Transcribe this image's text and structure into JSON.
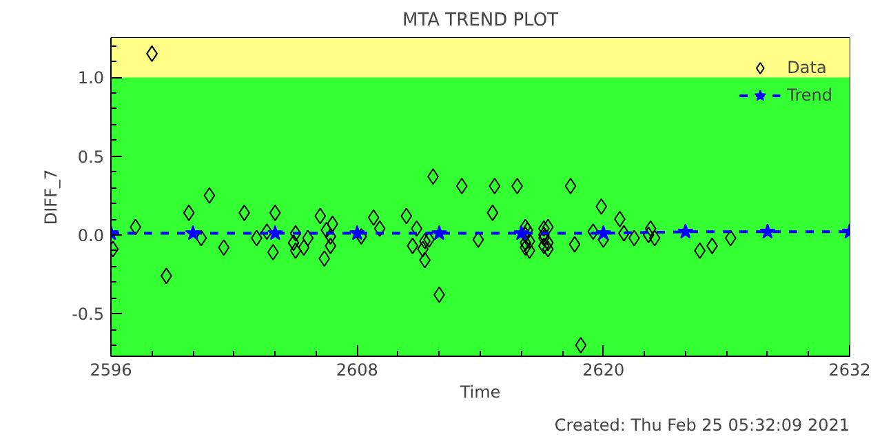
{
  "chart_data": {
    "type": "scatter",
    "title": "MTA TREND PLOT",
    "xlabel": "Time",
    "ylabel": "DIFF_7",
    "xlim": [
      2596,
      2632
    ],
    "xticks": [
      2596,
      2608,
      2620,
      2632
    ],
    "ylim": [
      -0.77,
      1.25
    ],
    "yticks": [
      {
        "value": -0.5,
        "label": "-0.5"
      },
      {
        "value": 0,
        "label": "0.0"
      },
      {
        "value": 0.5,
        "label": "0.5"
      },
      {
        "value": 1.0,
        "label": "1.0"
      }
    ],
    "grid": false,
    "legend": "top right",
    "bands": [
      {
        "axis": "y",
        "from": -0.77,
        "to": 1.0,
        "color": "#33ff33"
      },
      {
        "axis": "y",
        "from": 1.0,
        "to": 1.25,
        "color": "#ffff88"
      }
    ],
    "series": [
      {
        "name": "Data",
        "marker": "diamond",
        "color": "#000000",
        "x": [
          2596.1,
          2598.0,
          2597.2,
          2598.7,
          2599.8,
          2600.8,
          2600.4,
          2601.5,
          2602.5,
          2603.1,
          2603.6,
          2603.9,
          2604.0,
          2604.9,
          2605.0,
          2605.0,
          2605.4,
          2605.6,
          2606.2,
          2606.5,
          2606.4,
          2606.7,
          2606.8,
          2606.7,
          2608.8,
          2608.2,
          2609.1,
          2610.4,
          2610.9,
          2610.7,
          2611.2,
          2611.3,
          2611.5,
          2611.3,
          2611.7,
          2612.0,
          2613.1,
          2613.9,
          2614.7,
          2614.6,
          2615.8,
          2616.2,
          2616.2,
          2616.2,
          2616.2,
          2616.3,
          2616.4,
          2616.4,
          2617.1,
          2617.1,
          2617.1,
          2617.1,
          2617.3,
          2617.3,
          2617.3,
          2618.4,
          2618.6,
          2618.9,
          2619.5,
          2619.9,
          2620.0,
          2620.8,
          2621.0,
          2621.5,
          2622.3,
          2622.2,
          2622.5,
          2624.7,
          2625.3,
          2626.2
        ],
        "values": [
          -0.09,
          1.15,
          0.05,
          -0.26,
          0.14,
          0.25,
          -0.02,
          -0.08,
          0.14,
          -0.02,
          0.02,
          -0.11,
          0.14,
          -0.05,
          0.01,
          -0.1,
          -0.08,
          -0.02,
          0.12,
          0.03,
          -0.15,
          -0.01,
          0.07,
          -0.07,
          0.11,
          -0.01,
          0.04,
          0.12,
          0.04,
          -0.07,
          -0.09,
          -0.04,
          -0.03,
          -0.16,
          0.37,
          -0.38,
          0.31,
          -0.03,
          0.31,
          0.14,
          0.31,
          0.05,
          0.0,
          -0.05,
          -0.08,
          0.03,
          -0.04,
          -0.1,
          0.04,
          -0.02,
          -0.07,
          0.0,
          0.05,
          -0.05,
          -0.09,
          0.31,
          -0.06,
          -0.7,
          0.02,
          0.18,
          -0.03,
          0.1,
          0.01,
          -0.02,
          0.04,
          0.0,
          -0.02,
          -0.1,
          -0.07,
          -0.02
        ]
      },
      {
        "name": "Trend",
        "type": "line",
        "marker": "star",
        "line_style": "dashed",
        "color": "#0000ff",
        "x": [
          2596,
          2600,
          2604,
          2608,
          2612,
          2616,
          2620,
          2624,
          2628,
          2632
        ],
        "values": [
          0.01,
          0.01,
          0.01,
          0.01,
          0.01,
          0.01,
          0.01,
          0.02,
          0.02,
          0.02
        ]
      }
    ],
    "annotations": [
      "Created: Thu Feb 25 05:32:09 2021"
    ]
  }
}
